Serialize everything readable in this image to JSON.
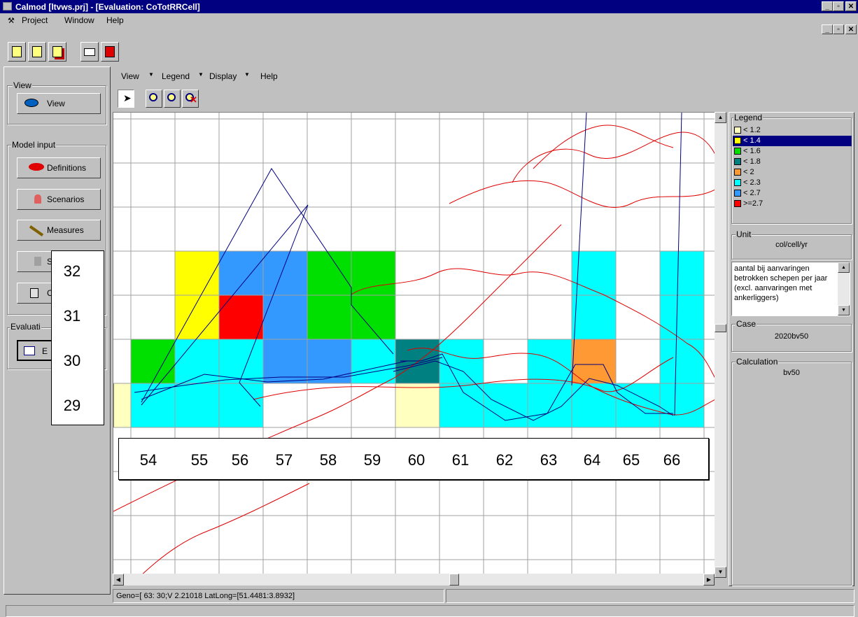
{
  "window": {
    "title": "Calmod [ltvws.prj] - [Evaluation: CoTotRRCell]"
  },
  "menu": {
    "project": "Project",
    "window": "Window",
    "help": "Help"
  },
  "eval_menu": {
    "view": "View",
    "legend": "Legend",
    "display": "Display",
    "help": "Help"
  },
  "left_panel": {
    "view_group": "View",
    "view_button": "View",
    "model_input_group": "Model input",
    "definitions": "Definitions",
    "scenarios": "Scenarios",
    "measures": "Measures",
    "btn4_partial": "S",
    "btn5_partial": "C",
    "evaluation_group": "Evaluati",
    "eval_btn_partial": "E"
  },
  "legend": {
    "title": "Legend",
    "items": [
      {
        "label": "< 1.2",
        "color": "#ffffc0"
      },
      {
        "label": "< 1.4",
        "color": "#ffff00",
        "selected": true
      },
      {
        "label": "< 1.6",
        "color": "#00e000"
      },
      {
        "label": "< 1.8",
        "color": "#008080"
      },
      {
        "label": "< 2",
        "color": "#ff9933"
      },
      {
        "label": "< 2.3",
        "color": "#00ffff"
      },
      {
        "label": "< 2.7",
        "color": "#3399ff"
      },
      {
        "label": ">=2.7",
        "color": "#ff0000"
      }
    ]
  },
  "unit": {
    "title": "Unit",
    "value": "col/cell/yr"
  },
  "description": "aantal bij aanvaringen betrokken schepen per jaar (excl. aanvaringen met ankerliggers)",
  "case": {
    "title": "Case",
    "value": "2020bv50"
  },
  "calculation": {
    "title": "Calculation",
    "value": "bv50"
  },
  "status": {
    "text": "Geno=[ 63: 30;V 2.21018 LatLong=[51.4481:3.8932]"
  },
  "row_labels": [
    "32",
    "31",
    "30",
    "29"
  ],
  "col_labels": [
    "54",
    "55",
    "56",
    "57",
    "58",
    "59",
    "60",
    "61",
    "62",
    "63",
    "64",
    "65",
    "66"
  ],
  "map_cells": [
    {
      "col": 55,
      "row": 32,
      "color": "#ffff00"
    },
    {
      "col": 56,
      "row": 32,
      "color": "#3399ff"
    },
    {
      "col": 57,
      "row": 32,
      "color": "#3399ff"
    },
    {
      "col": 58,
      "row": 32,
      "color": "#00e000"
    },
    {
      "col": 59,
      "row": 32,
      "color": "#00e000"
    },
    {
      "col": 64,
      "row": 32,
      "color": "#00ffff"
    },
    {
      "col": 66,
      "row": 32,
      "color": "#00ffff"
    },
    {
      "col": 55,
      "row": 31,
      "color": "#ffff00"
    },
    {
      "col": 56,
      "row": 31,
      "color": "#ff0000"
    },
    {
      "col": 57,
      "row": 31,
      "color": "#3399ff"
    },
    {
      "col": 58,
      "row": 31,
      "color": "#00e000"
    },
    {
      "col": 59,
      "row": 31,
      "color": "#00e000"
    },
    {
      "col": 64,
      "row": 31,
      "color": "#00ffff"
    },
    {
      "col": 66,
      "row": 31,
      "color": "#00ffff"
    },
    {
      "col": 54,
      "row": 30,
      "color": "#00e000"
    },
    {
      "col": 55,
      "row": 30,
      "color": "#00ffff"
    },
    {
      "col": 56,
      "row": 30,
      "color": "#00ffff"
    },
    {
      "col": 57,
      "row": 30,
      "color": "#3399ff"
    },
    {
      "col": 58,
      "row": 30,
      "color": "#3399ff"
    },
    {
      "col": 59,
      "row": 30,
      "color": "#00ffff"
    },
    {
      "col": 60,
      "row": 30,
      "color": "#008080"
    },
    {
      "col": 61,
      "row": 30,
      "color": "#00ffff"
    },
    {
      "col": 63,
      "row": 30,
      "color": "#00ffff"
    },
    {
      "col": 64,
      "row": 30,
      "color": "#ff9933"
    },
    {
      "col": 66,
      "row": 30,
      "color": "#00ffff"
    },
    {
      "col": 53,
      "row": 29,
      "color": "#ffffc0"
    },
    {
      "col": 54,
      "row": 29,
      "color": "#00ffff"
    },
    {
      "col": 55,
      "row": 29,
      "color": "#00ffff"
    },
    {
      "col": 56,
      "row": 29,
      "color": "#00ffff"
    },
    {
      "col": 60,
      "row": 29,
      "color": "#ffffc0"
    },
    {
      "col": 61,
      "row": 29,
      "color": "#00ffff"
    },
    {
      "col": 62,
      "row": 29,
      "color": "#00ffff"
    },
    {
      "col": 63,
      "row": 29,
      "color": "#00ffff"
    },
    {
      "col": 64,
      "row": 29,
      "color": "#00ffff"
    },
    {
      "col": 65,
      "row": 29,
      "color": "#00ffff"
    },
    {
      "col": 66,
      "row": 29,
      "color": "#00ffff"
    }
  ]
}
